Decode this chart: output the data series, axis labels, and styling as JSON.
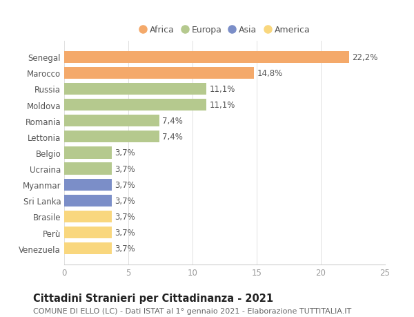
{
  "countries": [
    "Venezuela",
    "Perù",
    "Brasile",
    "Sri Lanka",
    "Myanmar",
    "Ucraina",
    "Belgio",
    "Lettonia",
    "Romania",
    "Moldova",
    "Russia",
    "Marocco",
    "Senegal"
  ],
  "values": [
    3.7,
    3.7,
    3.7,
    3.7,
    3.7,
    3.7,
    3.7,
    7.4,
    7.4,
    11.1,
    11.1,
    14.8,
    22.2
  ],
  "labels": [
    "3,7%",
    "3,7%",
    "3,7%",
    "3,7%",
    "3,7%",
    "3,7%",
    "3,7%",
    "7,4%",
    "7,4%",
    "11,1%",
    "11,1%",
    "14,8%",
    "22,2%"
  ],
  "colors": [
    "#f9d77e",
    "#f9d77e",
    "#f9d77e",
    "#7b8ec8",
    "#7b8ec8",
    "#b5c98e",
    "#b5c98e",
    "#b5c98e",
    "#b5c98e",
    "#b5c98e",
    "#b5c98e",
    "#f4a96a",
    "#f4a96a"
  ],
  "continent_colors": {
    "Africa": "#f4a96a",
    "Europa": "#b5c98e",
    "Asia": "#7b8ec8",
    "America": "#f9d77e"
  },
  "legend_order": [
    "Africa",
    "Europa",
    "Asia",
    "America"
  ],
  "title": "Cittadini Stranieri per Cittadinanza - 2021",
  "subtitle": "COMUNE DI ELLO (LC) - Dati ISTAT al 1° gennaio 2021 - Elaborazione TUTTITALIA.IT",
  "xlim": [
    0,
    25
  ],
  "xticks": [
    0,
    5,
    10,
    15,
    20,
    25
  ],
  "background_color": "#ffffff",
  "bar_height": 0.75,
  "title_fontsize": 10.5,
  "subtitle_fontsize": 8,
  "label_fontsize": 8.5,
  "tick_fontsize": 8.5,
  "legend_fontsize": 9
}
